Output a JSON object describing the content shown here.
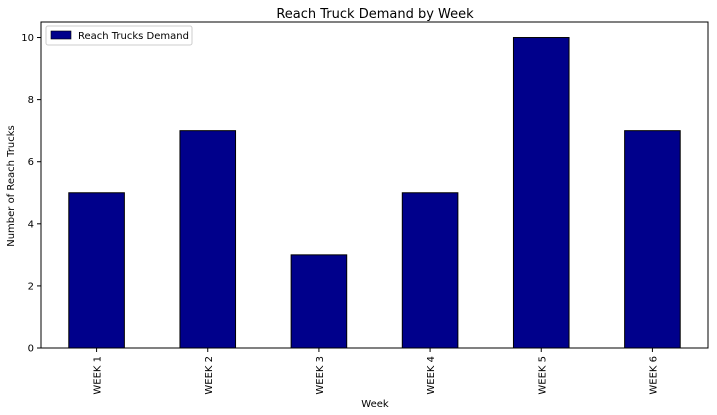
{
  "chart_data": {
    "type": "bar",
    "title": "Reach Truck Demand by Week",
    "xlabel": "Week",
    "ylabel": "Number of Reach Trucks",
    "categories": [
      "WEEK 1",
      "WEEK 2",
      "WEEK 3",
      "WEEK 4",
      "WEEK 5",
      "WEEK 6"
    ],
    "series": [
      {
        "name": "Reach Trucks Demand",
        "values": [
          5,
          7,
          3,
          5,
          10,
          7
        ],
        "color": "#00008b"
      }
    ],
    "ylim": [
      0,
      10.5
    ],
    "yticks": [
      "0",
      "2",
      "4",
      "6",
      "8",
      "10"
    ],
    "grid": false,
    "legend_position": "top-left"
  }
}
